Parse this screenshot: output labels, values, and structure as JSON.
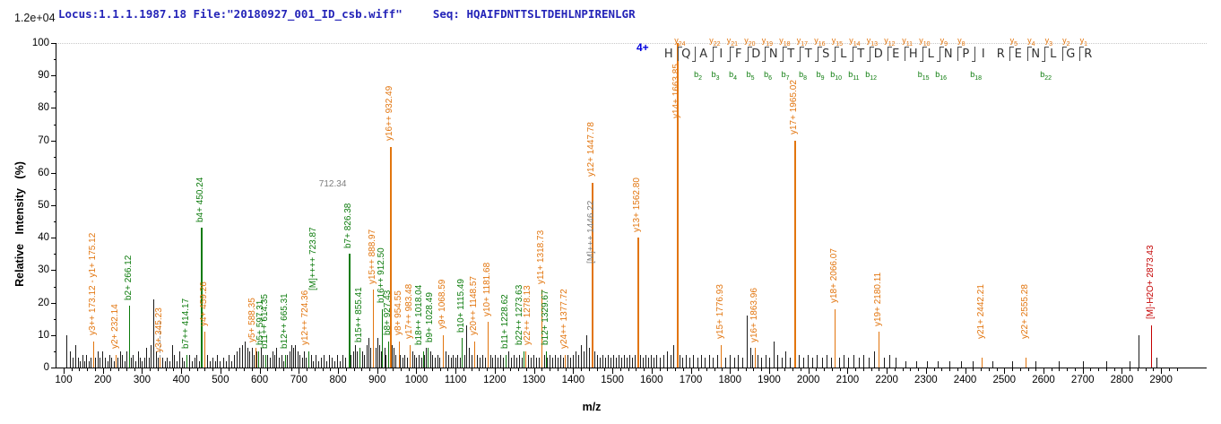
{
  "header": {
    "locus_file": "Locus:1.1.1.1987.18 File:\"20180927_001_ID_csb.wiff\"",
    "seq_label": "Seq:",
    "sequence": "HQAIFDNTTSLTDEHLNPIRENLGR"
  },
  "axes": {
    "y_max_count_label": "1.2e+04",
    "y_title": "Relative Intensity (%)",
    "x_title": "m/z",
    "x_tick_start": 100,
    "x_tick_end": 2900,
    "x_major_step": 100,
    "x_minor_step": 20,
    "x_minor_end": 2940,
    "y_min": 0,
    "y_max": 100,
    "y_major_step": 10,
    "y_minor_step": 5
  },
  "colors": {
    "y_ion": "#e2750e",
    "b_ion": "#0c7b0c",
    "precursor_gray": "#7d7d7d",
    "m_minus_h2o_red": "#c40000",
    "noise_black": "#1a1a1a",
    "header_text": "#2424b8",
    "charge_blue": "#0000dd"
  },
  "peptide": {
    "charge": "4+",
    "residues": [
      {
        "aa": "H",
        "y": 24
      },
      {
        "aa": "Q",
        "b": 2
      },
      {
        "aa": "A",
        "y": 22,
        "b": 3
      },
      {
        "aa": "I",
        "y": 21,
        "b": 4
      },
      {
        "aa": "F",
        "y": 20,
        "b": 5
      },
      {
        "aa": "D",
        "y": 19,
        "b": 6
      },
      {
        "aa": "N",
        "y": 18,
        "b": 7
      },
      {
        "aa": "T",
        "y": 17,
        "b": 8
      },
      {
        "aa": "T",
        "y": 16,
        "b": 9
      },
      {
        "aa": "S",
        "y": 15,
        "b": 10
      },
      {
        "aa": "L",
        "y": 14,
        "b": 11
      },
      {
        "aa": "T",
        "y": 13,
        "b": 12
      },
      {
        "aa": "D",
        "y": 12
      },
      {
        "aa": "E",
        "y": 11
      },
      {
        "aa": "H",
        "y": 10,
        "b": 15
      },
      {
        "aa": "L",
        "y": 9,
        "b": 16
      },
      {
        "aa": "N",
        "y": 8
      },
      {
        "aa": "P",
        "b": 18
      },
      {
        "aa": "I"
      },
      {
        "aa": "R",
        "y": 5
      },
      {
        "aa": "E",
        "y": 4
      },
      {
        "aa": "N",
        "y": 3,
        "b": 22
      },
      {
        "aa": "L",
        "y": 2
      },
      {
        "aa": "G",
        "y": 1
      },
      {
        "aa": "R"
      }
    ]
  },
  "chart_data": {
    "type": "bar",
    "title": "MS/MS fragment ion spectrum",
    "xlabel": "m/z",
    "ylabel": "Relative Intensity (%)",
    "x_range": [
      100,
      2900
    ],
    "y_range": [
      0,
      100
    ],
    "base_peak_count_label": "1.2e+04",
    "labeled_peaks": [
      {
        "mz": 175.12,
        "pct": 8,
        "color": "y",
        "label": "y3++ 173.12 - y1+ 175.12"
      },
      {
        "mz": 232.14,
        "pct": 4,
        "color": "y",
        "label": "y2+ 232.14"
      },
      {
        "mz": 266.12,
        "pct": 19,
        "color": "b",
        "label": "b2+ 266.12"
      },
      {
        "mz": 345.23,
        "pct": 3,
        "color": "y",
        "label": "y3+ 345.23",
        "leader_to_pct": 14
      },
      {
        "mz": 414.17,
        "pct": 4,
        "color": "b",
        "label": "b7++ 414.17"
      },
      {
        "mz": 450.24,
        "pct": 43,
        "color": "b",
        "label": "b4+ 450.24"
      },
      {
        "mz": 459.26,
        "pct": 11,
        "color": "y",
        "label": "y4+ 459.26"
      },
      {
        "mz": 588.35,
        "pct": 6,
        "color": "y",
        "label": "y5+ 588.35",
        "dx": -3
      },
      {
        "mz": 597.31,
        "pct": 5,
        "color": "b",
        "label": "b5+ 597.31",
        "dx": 3
      },
      {
        "mz": 614.35,
        "pct": 4,
        "color": "b",
        "label": "b11++ 614.35"
      },
      {
        "mz": 665.31,
        "pct": 4,
        "color": "b",
        "label": "b12++ 665.31"
      },
      {
        "mz": 724.36,
        "pct": 5,
        "color": "y",
        "label": "y12++ 724.36",
        "dx": -3
      },
      {
        "mz": 723.87,
        "pct": 5,
        "color": "b",
        "label": "[M]++++ 723.87",
        "dx": 6,
        "label_bottom_pct": 23
      },
      {
        "mz": 826.38,
        "pct": 35,
        "color": "b",
        "label": "b7+ 826.38"
      },
      {
        "mz": 855.41,
        "pct": 6,
        "color": "b",
        "label": "b15++ 855.41"
      },
      {
        "mz": 888.97,
        "pct": 24,
        "color": "y",
        "label": "y15++ 888.97"
      },
      {
        "mz": 912.5,
        "pct": 18,
        "color": "b",
        "label": "b16++ 912.50"
      },
      {
        "mz": 927.43,
        "pct": 8,
        "color": "b",
        "label": "b8+ 927.43"
      },
      {
        "mz": 932.49,
        "pct": 68,
        "color": "y",
        "label": "y16++ 932.49"
      },
      {
        "mz": 954.55,
        "pct": 8,
        "color": "y",
        "label": "y8+ 954.55"
      },
      {
        "mz": 983.48,
        "pct": 7,
        "color": "y",
        "label": "y17++ 983.48"
      },
      {
        "mz": 1018.04,
        "pct": 5,
        "color": "b",
        "label": "b18++ 1018.04",
        "dx": -4
      },
      {
        "mz": 1028.49,
        "pct": 6,
        "color": "b",
        "label": "b9+ 1028.49",
        "dx": 3
      },
      {
        "mz": 1068.59,
        "pct": 10,
        "color": "y",
        "label": "y9+ 1068.59"
      },
      {
        "mz": 1115.49,
        "pct": 9,
        "color": "b",
        "label": "b10+ 1115.49"
      },
      {
        "mz": 1148.57,
        "pct": 8,
        "color": "y",
        "label": "y20++ 1148.57"
      },
      {
        "mz": 1181.68,
        "pct": 14,
        "color": "y",
        "label": "y10+ 1181.68"
      },
      {
        "mz": 1228.62,
        "pct": 4,
        "color": "b",
        "label": "b11+ 1228.62"
      },
      {
        "mz": 1273.63,
        "pct": 5,
        "color": "b",
        "label": "b22++ 1273.63",
        "dx": -4
      },
      {
        "mz": 1278.13,
        "pct": 5,
        "color": "y",
        "label": "y22++ 1278.13",
        "dx": 3
      },
      {
        "mz": 1318.73,
        "pct": 24,
        "color": "y",
        "label": "y11+ 1318.73"
      },
      {
        "mz": 1329.67,
        "pct": 5,
        "color": "b",
        "label": "b12+ 1329.67"
      },
      {
        "mz": 1377.72,
        "pct": 4,
        "color": "y",
        "label": "y24++ 1377.72"
      },
      {
        "mz": 1447.78,
        "pct": 57,
        "color": "y",
        "label": "y12+ 1447.78"
      },
      {
        "mz": 1562.8,
        "pct": 40,
        "color": "y",
        "label": "y13+ 1562.80"
      },
      {
        "mz": 1663.85,
        "pct": 100,
        "color": "y",
        "label": "y14+ 1663.85",
        "label_bottom_pct": 76
      },
      {
        "mz": 1776.93,
        "pct": 7,
        "color": "y",
        "label": "y15+ 1776.93"
      },
      {
        "mz": 1863.96,
        "pct": 6,
        "color": "y",
        "label": "y16+ 1863.96"
      },
      {
        "mz": 1965.02,
        "pct": 70,
        "color": "y",
        "label": "y17+ 1965.02"
      },
      {
        "mz": 2066.07,
        "pct": 18,
        "color": "y",
        "label": "y18+ 2066.07"
      },
      {
        "mz": 2180.11,
        "pct": 11,
        "color": "y",
        "label": "y19+ 2180.11"
      },
      {
        "mz": 2442.21,
        "pct": 3,
        "color": "y",
        "label": "y21+ 2442.21",
        "label_bottom_pct": 8
      },
      {
        "mz": 2555.28,
        "pct": 3,
        "color": "y",
        "label": "y22+ 2555.28",
        "label_bottom_pct": 8
      },
      {
        "mz": 2873.43,
        "pct": 13,
        "color": "r",
        "label": "[M]-H2O+ 2873.43"
      }
    ],
    "floating_labels": [
      {
        "mz": 1446.22,
        "text": "[M]+++ 1446.22",
        "color": "m",
        "bottom_pct": 32,
        "vertical": true
      },
      {
        "mz": 740,
        "text": "712.34",
        "color": "m",
        "bottom_pct": 55,
        "vertical": false
      }
    ],
    "noise_peaks": [
      [
        108,
        10
      ],
      [
        116,
        5
      ],
      [
        123,
        3
      ],
      [
        129,
        7
      ],
      [
        136,
        3
      ],
      [
        141,
        2
      ],
      [
        147,
        4
      ],
      [
        153,
        2
      ],
      [
        158,
        4
      ],
      [
        164,
        2
      ],
      [
        169,
        3
      ],
      [
        181,
        3
      ],
      [
        186,
        5
      ],
      [
        192,
        3
      ],
      [
        199,
        5
      ],
      [
        205,
        3
      ],
      [
        211,
        2
      ],
      [
        216,
        4
      ],
      [
        222,
        3
      ],
      [
        227,
        2
      ],
      [
        238,
        3
      ],
      [
        243,
        5
      ],
      [
        249,
        4
      ],
      [
        255,
        2
      ],
      [
        260,
        5
      ],
      [
        272,
        3
      ],
      [
        277,
        4
      ],
      [
        283,
        2
      ],
      [
        289,
        5
      ],
      [
        295,
        3
      ],
      [
        300,
        2
      ],
      [
        306,
        3
      ],
      [
        311,
        6
      ],
      [
        317,
        3
      ],
      [
        323,
        7
      ],
      [
        329,
        21
      ],
      [
        336,
        5
      ],
      [
        341,
        3
      ],
      [
        352,
        3
      ],
      [
        358,
        2
      ],
      [
        364,
        3
      ],
      [
        370,
        2
      ],
      [
        376,
        7
      ],
      [
        382,
        4
      ],
      [
        389,
        2
      ],
      [
        395,
        5
      ],
      [
        401,
        3
      ],
      [
        407,
        2
      ],
      [
        421,
        4
      ],
      [
        427,
        2
      ],
      [
        433,
        3
      ],
      [
        439,
        4
      ],
      [
        445,
        2
      ],
      [
        466,
        4
      ],
      [
        472,
        2
      ],
      [
        479,
        3
      ],
      [
        486,
        2
      ],
      [
        492,
        4
      ],
      [
        499,
        2
      ],
      [
        506,
        3
      ],
      [
        513,
        2
      ],
      [
        521,
        4
      ],
      [
        528,
        2
      ],
      [
        535,
        4
      ],
      [
        542,
        5
      ],
      [
        549,
        6
      ],
      [
        556,
        7
      ],
      [
        562,
        8
      ],
      [
        569,
        6
      ],
      [
        574,
        5
      ],
      [
        580,
        6
      ],
      [
        585,
        4
      ],
      [
        592,
        5
      ],
      [
        603,
        6
      ],
      [
        608,
        4
      ],
      [
        620,
        4
      ],
      [
        626,
        3
      ],
      [
        632,
        5
      ],
      [
        637,
        4
      ],
      [
        643,
        6
      ],
      [
        649,
        3
      ],
      [
        655,
        4
      ],
      [
        661,
        2
      ],
      [
        670,
        4
      ],
      [
        676,
        5
      ],
      [
        681,
        7
      ],
      [
        686,
        6
      ],
      [
        691,
        7
      ],
      [
        696,
        5
      ],
      [
        702,
        4
      ],
      [
        708,
        3
      ],
      [
        713,
        5
      ],
      [
        718,
        3
      ],
      [
        731,
        4
      ],
      [
        737,
        2
      ],
      [
        743,
        4
      ],
      [
        749,
        2
      ],
      [
        756,
        3
      ],
      [
        763,
        4
      ],
      [
        770,
        2
      ],
      [
        777,
        4
      ],
      [
        784,
        3
      ],
      [
        791,
        2
      ],
      [
        798,
        4
      ],
      [
        805,
        2
      ],
      [
        812,
        4
      ],
      [
        818,
        3
      ],
      [
        833,
        4
      ],
      [
        839,
        5
      ],
      [
        844,
        7
      ],
      [
        849,
        5
      ],
      [
        861,
        5
      ],
      [
        867,
        4
      ],
      [
        872,
        7
      ],
      [
        877,
        9
      ],
      [
        882,
        6
      ],
      [
        895,
        6
      ],
      [
        900,
        9
      ],
      [
        905,
        7
      ],
      [
        910,
        5
      ],
      [
        918,
        6
      ],
      [
        922,
        4
      ],
      [
        938,
        7
      ],
      [
        942,
        6
      ],
      [
        947,
        4
      ],
      [
        958,
        4
      ],
      [
        964,
        3
      ],
      [
        970,
        4
      ],
      [
        976,
        3
      ],
      [
        989,
        5
      ],
      [
        994,
        4
      ],
      [
        1000,
        3
      ],
      [
        1006,
        4
      ],
      [
        1012,
        3
      ],
      [
        1019,
        4
      ],
      [
        1024,
        6
      ],
      [
        1035,
        5
      ],
      [
        1041,
        4
      ],
      [
        1047,
        3
      ],
      [
        1053,
        4
      ],
      [
        1059,
        3
      ],
      [
        1074,
        5
      ],
      [
        1081,
        4
      ],
      [
        1087,
        3
      ],
      [
        1093,
        4
      ],
      [
        1099,
        3
      ],
      [
        1105,
        4
      ],
      [
        1111,
        3
      ],
      [
        1122,
        4
      ],
      [
        1128,
        13
      ],
      [
        1134,
        6
      ],
      [
        1140,
        4
      ],
      [
        1155,
        4
      ],
      [
        1161,
        3
      ],
      [
        1168,
        4
      ],
      [
        1175,
        3
      ],
      [
        1188,
        4
      ],
      [
        1194,
        3
      ],
      [
        1200,
        4
      ],
      [
        1207,
        3
      ],
      [
        1214,
        4
      ],
      [
        1221,
        3
      ],
      [
        1235,
        5
      ],
      [
        1241,
        3
      ],
      [
        1248,
        4
      ],
      [
        1255,
        3
      ],
      [
        1262,
        4
      ],
      [
        1269,
        3
      ],
      [
        1284,
        4
      ],
      [
        1291,
        3
      ],
      [
        1298,
        4
      ],
      [
        1305,
        3
      ],
      [
        1312,
        3
      ],
      [
        1325,
        4
      ],
      [
        1332,
        3
      ],
      [
        1339,
        4
      ],
      [
        1346,
        3
      ],
      [
        1353,
        4
      ],
      [
        1360,
        3
      ],
      [
        1367,
        4
      ],
      [
        1374,
        3
      ],
      [
        1385,
        4
      ],
      [
        1392,
        3
      ],
      [
        1399,
        4
      ],
      [
        1406,
        5
      ],
      [
        1413,
        4
      ],
      [
        1420,
        7
      ],
      [
        1427,
        5
      ],
      [
        1434,
        10
      ],
      [
        1440,
        6
      ],
      [
        1453,
        5
      ],
      [
        1460,
        4
      ],
      [
        1467,
        3
      ],
      [
        1474,
        4
      ],
      [
        1481,
        3
      ],
      [
        1488,
        4
      ],
      [
        1495,
        3
      ],
      [
        1502,
        4
      ],
      [
        1509,
        3
      ],
      [
        1516,
        4
      ],
      [
        1523,
        3
      ],
      [
        1530,
        4
      ],
      [
        1537,
        3
      ],
      [
        1544,
        4
      ],
      [
        1551,
        3
      ],
      [
        1558,
        4
      ],
      [
        1570,
        4
      ],
      [
        1577,
        3
      ],
      [
        1584,
        4
      ],
      [
        1591,
        3
      ],
      [
        1598,
        4
      ],
      [
        1605,
        3
      ],
      [
        1612,
        4
      ],
      [
        1621,
        3
      ],
      [
        1630,
        4
      ],
      [
        1639,
        5
      ],
      [
        1648,
        4
      ],
      [
        1656,
        7
      ],
      [
        1671,
        4
      ],
      [
        1679,
        3
      ],
      [
        1688,
        4
      ],
      [
        1697,
        3
      ],
      [
        1706,
        4
      ],
      [
        1716,
        3
      ],
      [
        1726,
        4
      ],
      [
        1736,
        3
      ],
      [
        1746,
        4
      ],
      [
        1757,
        3
      ],
      [
        1768,
        4
      ],
      [
        1788,
        3
      ],
      [
        1799,
        4
      ],
      [
        1810,
        3
      ],
      [
        1821,
        4
      ],
      [
        1832,
        3
      ],
      [
        1843,
        16
      ],
      [
        1851,
        6
      ],
      [
        1857,
        4
      ],
      [
        1871,
        4
      ],
      [
        1880,
        3
      ],
      [
        1890,
        4
      ],
      [
        1900,
        3
      ],
      [
        1911,
        8
      ],
      [
        1921,
        4
      ],
      [
        1931,
        3
      ],
      [
        1942,
        5
      ],
      [
        1952,
        3
      ],
      [
        1976,
        4
      ],
      [
        1987,
        3
      ],
      [
        1998,
        4
      ],
      [
        2010,
        3
      ],
      [
        2022,
        4
      ],
      [
        2034,
        3
      ],
      [
        2046,
        4
      ],
      [
        2058,
        3
      ],
      [
        2078,
        3
      ],
      [
        2090,
        4
      ],
      [
        2102,
        3
      ],
      [
        2115,
        4
      ],
      [
        2128,
        3
      ],
      [
        2141,
        4
      ],
      [
        2154,
        3
      ],
      [
        2167,
        5
      ],
      [
        2193,
        3
      ],
      [
        2207,
        4
      ],
      [
        2222,
        3
      ],
      [
        2248,
        2
      ],
      [
        2275,
        2
      ],
      [
        2302,
        2
      ],
      [
        2330,
        2
      ],
      [
        2360,
        2
      ],
      [
        2390,
        2
      ],
      [
        2420,
        2
      ],
      [
        2470,
        2
      ],
      [
        2520,
        2
      ],
      [
        2580,
        2
      ],
      [
        2640,
        2
      ],
      [
        2700,
        2
      ],
      [
        2760,
        2
      ],
      [
        2820,
        2
      ],
      [
        2843,
        10
      ],
      [
        2888,
        3
      ]
    ]
  }
}
